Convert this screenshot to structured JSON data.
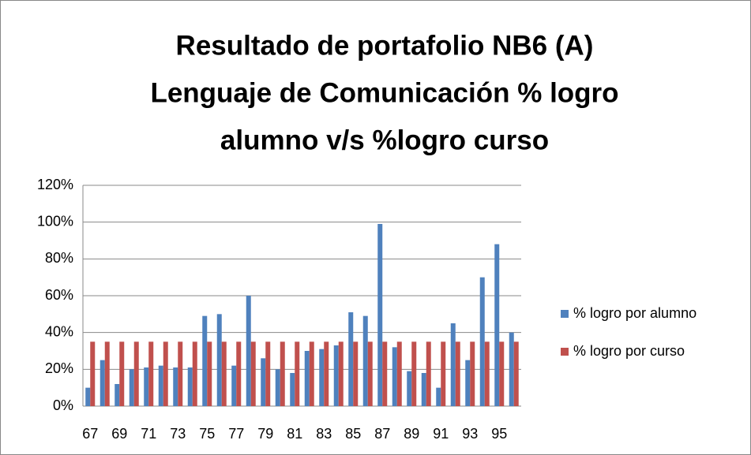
{
  "chart_data": {
    "type": "bar",
    "title": [
      "Resultado de portafolio NB6 (A)",
      "Lenguaje de Comunicación % logro",
      "alumno v/s %logro curso"
    ],
    "categories": [
      "67",
      null,
      "69",
      null,
      "71",
      null,
      "73",
      null,
      "75",
      null,
      "77",
      null,
      "79",
      null,
      "81",
      null,
      "83",
      null,
      "85",
      null,
      "87",
      null,
      "89",
      null,
      "91",
      null,
      "93",
      null,
      "95",
      null
    ],
    "series": [
      {
        "name": "% logro por alumno",
        "color": "#4f81bd",
        "values": [
          10,
          25,
          12,
          20,
          21,
          22,
          21,
          21,
          49,
          50,
          22,
          60,
          26,
          20,
          18,
          30,
          31,
          33,
          51,
          49,
          99,
          32,
          19,
          18,
          10,
          45,
          25,
          70,
          88,
          40
        ]
      },
      {
        "name": "% logro por curso",
        "color": "#c0504d",
        "values": [
          35,
          35,
          35,
          35,
          35,
          35,
          35,
          35,
          35,
          35,
          35,
          35,
          35,
          35,
          35,
          35,
          35,
          35,
          35,
          35,
          35,
          35,
          35,
          35,
          35,
          35,
          35,
          35,
          35,
          35
        ]
      }
    ],
    "ylim": [
      0,
      120
    ],
    "yticks": [
      {
        "value": 0,
        "label": "0%"
      },
      {
        "value": 20,
        "label": "20%"
      },
      {
        "value": 40,
        "label": "40%"
      },
      {
        "value": 60,
        "label": "60%"
      },
      {
        "value": 80,
        "label": "80%"
      },
      {
        "value": 100,
        "label": "100%"
      },
      {
        "value": 120,
        "label": "120%"
      }
    ],
    "grid": true,
    "legend": "right"
  }
}
